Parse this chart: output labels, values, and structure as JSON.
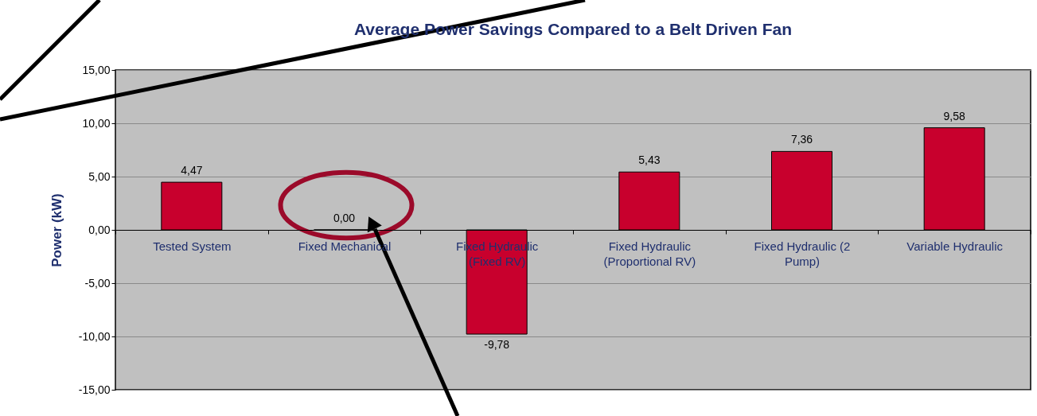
{
  "chart_data": {
    "type": "bar",
    "title": "Average Power Savings Compared to a Belt Driven Fan",
    "ylabel": "Power (kW)",
    "categories": [
      "Tested System",
      "Fixed Mechanical",
      "Fixed Hydraulic (Fixed RV)",
      "Fixed Hydraulic (Proportional RV)",
      "Fixed Hydraulic (2 Pump)",
      "Variable Hydraulic"
    ],
    "values": [
      4.47,
      0.0,
      -9.78,
      5.43,
      7.36,
      9.58
    ],
    "value_labels": [
      "4,47",
      "0,00",
      "-9,78",
      "5,43",
      "7,36",
      "9,58"
    ],
    "color": "#c8002d",
    "ylim": [
      -15,
      15
    ],
    "yticks": [
      {
        "value": -15,
        "label": "-15,00"
      },
      {
        "value": -10,
        "label": "-10,00"
      },
      {
        "value": -5,
        "label": "-5,00"
      },
      {
        "value": 0,
        "label": "0,00"
      },
      {
        "value": 5,
        "label": "5,00"
      },
      {
        "value": 10,
        "label": "10,00"
      },
      {
        "value": 15,
        "label": "15,00"
      }
    ],
    "grid": "y"
  }
}
